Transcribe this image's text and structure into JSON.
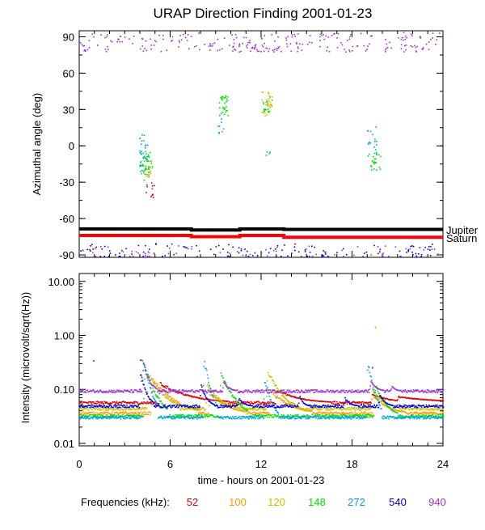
{
  "chart_data": [
    {
      "type": "scatter",
      "title": "URAP Direction Finding  2001-01-23",
      "ylabel": "Azimuthal angle (deg)",
      "xlim": [
        0,
        24
      ],
      "ylim": [
        -92,
        95
      ],
      "yticks": [
        "90",
        "60",
        "30",
        "0",
        "-30",
        "-60",
        "-90"
      ],
      "yticks_values": [
        90,
        60,
        30,
        0,
        -30,
        -60,
        -90
      ],
      "reference_lines": [
        {
          "name": "Jupiter",
          "color": "#000000",
          "segments": [
            [
              0,
              -68.5
            ],
            [
              7.4,
              -68.5
            ],
            [
              7.4,
              -69.5
            ],
            [
              10.6,
              -69.5
            ],
            [
              10.6,
              -68.5
            ],
            [
              13.5,
              -68.5
            ],
            [
              13.5,
              -69
            ],
            [
              24,
              -69
            ]
          ]
        },
        {
          "name": "Saturn",
          "color": "#ff0000",
          "segments": [
            [
              0,
              -74
            ],
            [
              7.4,
              -74
            ],
            [
              7.4,
              -75
            ],
            [
              10.6,
              -75
            ],
            [
              10.6,
              -74
            ],
            [
              13.5,
              -74
            ],
            [
              13.5,
              -75.5
            ],
            [
              24,
              -75.5
            ]
          ]
        }
      ],
      "clusters": [
        {
          "series": "52",
          "x": [
            4.3,
            5.0
          ],
          "y": [
            -45,
            -30
          ],
          "n": 12
        },
        {
          "series": "120",
          "x": [
            4.1,
            4.8
          ],
          "y": [
            -25,
            -10
          ],
          "n": 20
        },
        {
          "series": "148",
          "x": [
            4.0,
            4.8
          ],
          "y": [
            -28,
            -5
          ],
          "n": 40
        },
        {
          "series": "272",
          "x": [
            3.9,
            4.5
          ],
          "y": [
            -20,
            10
          ],
          "n": 28
        },
        {
          "series": "148",
          "x": [
            9.2,
            9.8
          ],
          "y": [
            25,
            42
          ],
          "n": 30
        },
        {
          "series": "272",
          "x": [
            9.1,
            9.6
          ],
          "y": [
            10,
            30
          ],
          "n": 10
        },
        {
          "series": "120",
          "x": [
            12.0,
            12.7
          ],
          "y": [
            25,
            45
          ],
          "n": 34
        },
        {
          "series": "148",
          "x": [
            12.1,
            12.6
          ],
          "y": [
            28,
            38
          ],
          "n": 14
        },
        {
          "series": "272",
          "x": [
            12.3,
            12.6
          ],
          "y": [
            -8,
            -3
          ],
          "n": 4
        },
        {
          "series": "148",
          "x": [
            19.2,
            19.9
          ],
          "y": [
            -20,
            -5
          ],
          "n": 22
        },
        {
          "series": "272",
          "x": [
            18.9,
            19.6
          ],
          "y": [
            -8,
            17
          ],
          "n": 18
        },
        {
          "series": "940",
          "x": [
            0,
            24
          ],
          "y": [
            78,
            94
          ],
          "n": 230
        },
        {
          "series": "540",
          "x": [
            0,
            24
          ],
          "y": [
            -93,
            -80
          ],
          "n": 120
        },
        {
          "series": "940",
          "x": [
            0,
            24
          ],
          "y": [
            -93,
            -82
          ],
          "n": 80
        },
        {
          "series": "940",
          "x": [
            8.2,
            13.0
          ],
          "y": [
            78,
            86
          ],
          "n": 30
        }
      ]
    },
    {
      "type": "line",
      "xlabel": "time - hours on 2001-01-23",
      "ylabel": "Intensity (microvolt/sqrt(Hz))",
      "ylim": [
        0.009,
        14
      ],
      "yscale": "log",
      "yticks": [
        "10.00",
        "1.00",
        "0.10",
        "0.01"
      ],
      "yticks_values": [
        10,
        1,
        0.1,
        0.01
      ],
      "xticks": [
        "0",
        "6",
        "12",
        "18",
        "24"
      ],
      "xticks_values": [
        0,
        6,
        12,
        18,
        24
      ],
      "series": [
        {
          "name": "52",
          "baseline": 0.058,
          "peaks": [
            [
              5.3,
              0.13,
              1.5
            ],
            [
              13.0,
              0.1,
              1.2
            ],
            [
              19.3,
              0.085,
              1.0
            ],
            [
              21.0,
              0.075,
              2.5
            ]
          ]
        },
        {
          "name": "100",
          "baseline": 0.037,
          "peaks": [
            [
              4.8,
              0.15,
              1.0
            ],
            [
              8.6,
              0.09,
              0.8
            ],
            [
              12.6,
              0.1,
              0.9
            ],
            [
              19.4,
              0.08,
              0.7
            ]
          ]
        },
        {
          "name": "120",
          "baseline": 0.045,
          "peaks": [
            [
              4.5,
              0.2,
              0.7
            ],
            [
              8.4,
              0.13,
              0.6
            ],
            [
              12.4,
              0.22,
              0.6
            ],
            [
              19.3,
              0.1,
              0.6
            ]
          ]
        },
        {
          "name": "148",
          "baseline": 0.033,
          "peaks": [
            [
              4.3,
              0.25,
              0.5
            ],
            [
              9.3,
              0.2,
              0.6
            ],
            [
              19.5,
              0.12,
              0.5
            ]
          ]
        },
        {
          "name": "272",
          "baseline": 0.031,
          "peaks": [
            [
              4.1,
              0.42,
              0.35
            ],
            [
              8.2,
              0.35,
              0.3
            ],
            [
              12.2,
              0.16,
              0.3
            ],
            [
              19.0,
              0.3,
              0.3
            ]
          ]
        },
        {
          "name": "540",
          "baseline": 0.05,
          "peaks": [
            [
              4.0,
              0.2,
              0.3
            ],
            [
              8.0,
              0.12,
              0.3
            ],
            [
              10.5,
              0.07,
              0.3
            ],
            [
              14.5,
              0.08,
              0.2
            ],
            [
              17.5,
              0.07,
              0.3
            ],
            [
              19.8,
              0.08,
              0.3
            ]
          ]
        },
        {
          "name": "940",
          "baseline": 0.095,
          "peaks": [
            [
              4.2,
              0.3,
              0.3
            ],
            [
              9.5,
              0.14,
              0.3
            ],
            [
              19.2,
              0.15,
              0.3
            ],
            [
              20.6,
              0.12,
              0.2
            ]
          ]
        }
      ],
      "outliers": [
        [
          0.9,
          0.35,
          "940"
        ],
        [
          4.0,
          0.36,
          "940"
        ],
        [
          19.3,
          0.26,
          "940"
        ],
        [
          19.5,
          1.45,
          "120"
        ]
      ]
    }
  ],
  "legend": {
    "label": "Frequencies (kHz):",
    "items": [
      {
        "name": "52",
        "color": "#e00000"
      },
      {
        "name": "100",
        "color": "#ff9a00"
      },
      {
        "name": "120",
        "color": "#c8c000"
      },
      {
        "name": "148",
        "color": "#00e000"
      },
      {
        "name": "272",
        "color": "#00a0e0"
      },
      {
        "name": "540",
        "color": "#0000d8"
      },
      {
        "name": "940",
        "color": "#9a30e0"
      }
    ]
  },
  "ref_labels": {
    "jupiter": "Jupiter",
    "saturn": "Saturn"
  }
}
